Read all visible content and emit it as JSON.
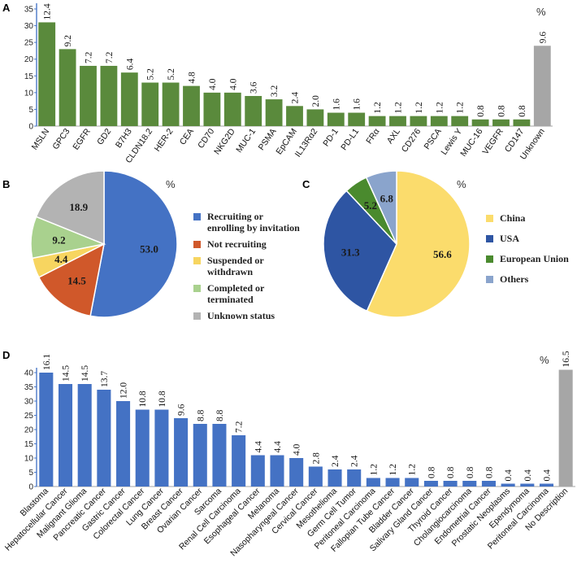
{
  "colors": {
    "greenBar": "#5a8a3c",
    "grayBar": "#a6a6a6",
    "blueBar": "#4472c4",
    "axisBlue": "#4a78c8"
  },
  "chart_data": [
    {
      "panel": "A",
      "type": "bar",
      "unit": "%",
      "ylim": [
        0,
        35
      ],
      "yticks": [
        0,
        5,
        10,
        15,
        20,
        25,
        30,
        35
      ],
      "categories": [
        "MSLN",
        "GPC3",
        "EGFR",
        "GD2",
        "B7H3",
        "CLDN18.2",
        "HER-2",
        "CEA",
        "CD70",
        "NKG2D",
        "MUC-1",
        "PSMA",
        "EpCAM",
        "IL13Rα2",
        "PD-1",
        "PD-L1",
        "FRα",
        "AXL",
        "CD276",
        "PSCA",
        "Lewis Y",
        "MUC-16",
        "VEGFR",
        "CD147",
        "Unknown"
      ],
      "values": [
        31,
        23,
        18,
        18,
        16,
        13,
        13,
        12,
        10,
        10,
        9,
        8,
        6,
        5,
        4,
        4,
        3,
        3,
        3,
        3,
        3,
        2,
        2,
        2,
        24
      ],
      "labels": [
        "12.4",
        "9.2",
        "7.2",
        "7.2",
        "6.4",
        "5.2",
        "5.2",
        "4.8",
        "4.0",
        "4.0",
        "3.6",
        "3.2",
        "2.4",
        "2.0",
        "1.6",
        "1.6",
        "1.2",
        "1.2",
        "1.2",
        "1.2",
        "1.2",
        "0.8",
        "0.8",
        "0.8",
        "9.6"
      ]
    },
    {
      "panel": "B",
      "type": "pie",
      "unit": "%",
      "slices": [
        {
          "label": "Recruiting or enrolling by invitation",
          "lines": [
            "Recruiting or",
            "enrolling by invitation"
          ],
          "value": 53.0,
          "display": "53.0",
          "color": "#4472c4"
        },
        {
          "label": "Not recruiting",
          "lines": [
            "Not recruiting"
          ],
          "value": 14.5,
          "display": "14.5",
          "color": "#d0582a"
        },
        {
          "label": "Suspended or withdrawn",
          "lines": [
            "Suspended or",
            "withdrawn"
          ],
          "value": 4.4,
          "display": "4.4",
          "color": "#f7d560"
        },
        {
          "label": "Completed or terminated",
          "lines": [
            "Completed or",
            "terminated"
          ],
          "value": 9.2,
          "display": "9.2",
          "color": "#a9d18e"
        },
        {
          "label": "Unknown status",
          "lines": [
            "Unknown status"
          ],
          "value": 18.9,
          "display": "18.9",
          "color": "#b3b3b3"
        }
      ]
    },
    {
      "panel": "C",
      "type": "pie",
      "unit": "%",
      "slices": [
        {
          "label": "China",
          "lines": [
            "China"
          ],
          "value": 56.6,
          "display": "56.6",
          "color": "#fbdc6c"
        },
        {
          "label": "USA",
          "lines": [
            "USA"
          ],
          "value": 31.3,
          "display": "31.3",
          "color": "#2e55a3"
        },
        {
          "label": "European Union",
          "lines": [
            "European Union"
          ],
          "value": 5.2,
          "display": "5.2",
          "color": "#4a8a2e"
        },
        {
          "label": "Others",
          "lines": [
            "Others"
          ],
          "value": 6.8,
          "display": "6.8",
          "color": "#8aa4cc"
        }
      ]
    },
    {
      "panel": "D",
      "type": "bar",
      "unit": "%",
      "ylim": [
        0,
        40
      ],
      "yticks": [
        0,
        5,
        10,
        15,
        20,
        25,
        30,
        35,
        40
      ],
      "categories": [
        "Blastoma",
        "Hepatocellular Cancer",
        "Malignant Glioma",
        "Pancreatic Cancer",
        "Gastric Cancer",
        "Colorectal Cancer",
        "Lung Cancer",
        "Breast Cancer",
        "Ovarian Cancer",
        "Sarcoma",
        "Renal Cell Carcinoma",
        "Esophageal Cancer",
        "Melanoma",
        "Nasopharyngeal Cancer",
        "Cervical Cancer",
        "Mesothelioma",
        "Germ Cell Tumor",
        "Peritoneal Carcinoma",
        "Fallopian Tube Cancer",
        "Bladder Cancer",
        "Salivary Gland Cancer",
        "Thyroid Cancer",
        "Cholangiocarcinoma",
        "Endometrial Cancer",
        "Prostatic Neoplasms",
        "Ependymoma",
        "Peritoneal Carcinoma",
        "No Description"
      ],
      "values": [
        40,
        36,
        36,
        34,
        30,
        27,
        27,
        24,
        22,
        22,
        18,
        11,
        11,
        10,
        7,
        6,
        6,
        3,
        3,
        3,
        2,
        2,
        2,
        2,
        1,
        1,
        1,
        41
      ],
      "labels": [
        "16.1",
        "14.5",
        "14.5",
        "13.7",
        "12.0",
        "10.8",
        "10.8",
        "9.6",
        "8.8",
        "8.8",
        "7.2",
        "4.4",
        "4.4",
        "4.0",
        "2.8",
        "2.4",
        "2.4",
        "1.2",
        "1.2",
        "1.2",
        "0.8",
        "0.8",
        "0.8",
        "0.8",
        "0.4",
        "0.4",
        "0.4",
        "16.5"
      ]
    }
  ]
}
